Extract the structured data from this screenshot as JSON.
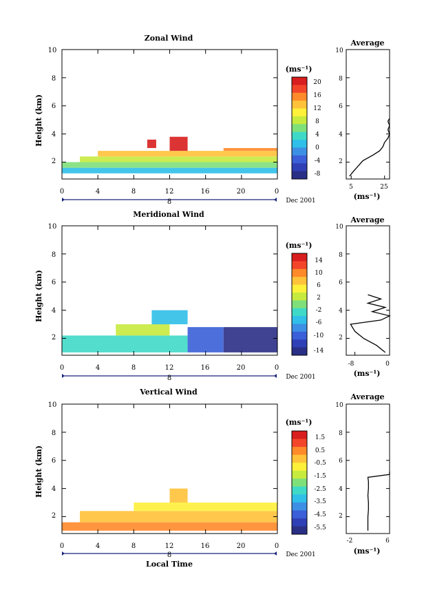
{
  "colors": {
    "background": "#ffffff",
    "axis": "#000000",
    "date_bar": "#1a237e",
    "colormap": [
      "#2a2f86",
      "#2f3fb5",
      "#3a5fd8",
      "#3c8fe4",
      "#2fbfe8",
      "#3fd9c8",
      "#7fe07a",
      "#c7ea3e",
      "#fff03a",
      "#ffc23a",
      "#ff8a2a",
      "#f2452a",
      "#d81e1e"
    ]
  },
  "panels": [
    {
      "id": "zonal",
      "title": "Zonal Wind",
      "ylabel": "Height (km)",
      "xticks": [
        "0",
        "4",
        "8",
        "12",
        "16",
        "20",
        "0"
      ],
      "y_ticks": [
        "2",
        "4",
        "6",
        "8",
        "10"
      ],
      "date_label": "Dec 2001",
      "date_marker": "8",
      "colorbar_unit": "(ms⁻¹)",
      "colorbar_ticks": [
        "20",
        "16",
        "12",
        "8",
        "4",
        "0",
        "-4",
        "-8"
      ],
      "avg_title": "Average",
      "avg_xticks": [
        "5",
        "25"
      ],
      "avg_unit": "(ms⁻¹)"
    },
    {
      "id": "meridional",
      "title": "Meridional Wind",
      "ylabel": "Height (km)",
      "xticks": [
        "0",
        "4",
        "8",
        "12",
        "16",
        "20",
        "0"
      ],
      "y_ticks": [
        "2",
        "4",
        "6",
        "8",
        "10"
      ],
      "date_label": "Dec 2001",
      "date_marker": "8",
      "colorbar_unit": "(ms⁻¹)",
      "colorbar_ticks": [
        "14",
        "10",
        "6",
        "2",
        "-2",
        "-6",
        "-10",
        "-14"
      ],
      "avg_title": "Average",
      "avg_xticks": [
        "-8",
        "0"
      ],
      "avg_unit": "(ms⁻¹)"
    },
    {
      "id": "vertical",
      "title": "Vertical Wind",
      "ylabel": "Height (km)",
      "xticks": [
        "0",
        "4",
        "8",
        "12",
        "16",
        "20",
        "0"
      ],
      "y_ticks": [
        "2",
        "4",
        "6",
        "8",
        "10"
      ],
      "date_label": "Dec 2001",
      "date_marker": "8",
      "colorbar_unit": "(ms⁻¹)",
      "colorbar_ticks": [
        "1.5",
        "0.5",
        "-0.5",
        "-1.5",
        "-2.5",
        "-3.5",
        "-4.5",
        "-5.5"
      ],
      "avg_title": "Average",
      "avg_xticks": [
        "-2",
        "6"
      ],
      "avg_unit": "(ms⁻¹)"
    }
  ],
  "xlabel": "Local Time",
  "chart_data": [
    {
      "type": "heatmap",
      "title": "Zonal Wind",
      "xlabel": "",
      "ylabel": "Height (km)",
      "xlim": [
        0,
        24
      ],
      "ylim": [
        0.8,
        10
      ],
      "colorbar": {
        "unit": "(ms⁻¹)",
        "range": [
          -8,
          22
        ],
        "ticks": [
          20,
          16,
          12,
          8,
          4,
          0,
          -4,
          -8
        ]
      },
      "blocks": [
        {
          "x": [
            0,
            24
          ],
          "y": [
            1.2,
            1.6
          ],
          "value": 2
        },
        {
          "x": [
            0,
            24
          ],
          "y": [
            1.6,
            2.0
          ],
          "value": 6
        },
        {
          "x": [
            2,
            24
          ],
          "y": [
            2.0,
            2.4
          ],
          "value": 9
        },
        {
          "x": [
            4,
            24
          ],
          "y": [
            2.4,
            2.8
          ],
          "value": 13
        },
        {
          "x": [
            18,
            24
          ],
          "y": [
            2.8,
            3.0
          ],
          "value": 17
        },
        {
          "x": [
            12,
            14
          ],
          "y": [
            2.8,
            3.8
          ],
          "value": 21
        },
        {
          "x": [
            9.5,
            10.5
          ],
          "y": [
            3.0,
            3.6
          ],
          "value": 20
        }
      ],
      "average_profile": {
        "xlim": [
          2,
          28
        ],
        "xticks": [
          5,
          25
        ],
        "height": [
          1.0,
          1.3,
          1.7,
          2.1,
          2.5,
          2.8,
          3.1,
          3.4,
          3.7,
          4.0,
          4.3,
          4.6,
          4.9,
          5.1
        ],
        "value": [
          4,
          6,
          9,
          12,
          18,
          22,
          24,
          25,
          27,
          28,
          27,
          28,
          27,
          28
        ]
      }
    },
    {
      "type": "heatmap",
      "title": "Meridional Wind",
      "xlabel": "",
      "ylabel": "Height (km)",
      "xlim": [
        0,
        24
      ],
      "ylim": [
        0.8,
        10
      ],
      "colorbar": {
        "unit": "(ms⁻¹)",
        "range": [
          -16,
          16
        ],
        "ticks": [
          14,
          10,
          6,
          2,
          -2,
          -6,
          -10,
          -14
        ]
      },
      "blocks": [
        {
          "x": [
            0,
            14
          ],
          "y": [
            1.0,
            2.2
          ],
          "value": -2
        },
        {
          "x": [
            6,
            12
          ],
          "y": [
            2.2,
            3.0
          ],
          "value": 2
        },
        {
          "x": [
            14,
            18
          ],
          "y": [
            1.0,
            2.8
          ],
          "value": -10
        },
        {
          "x": [
            18,
            24
          ],
          "y": [
            1.0,
            2.8
          ],
          "value": -14
        },
        {
          "x": [
            10,
            14
          ],
          "y": [
            3.0,
            4.0
          ],
          "value": -4
        }
      ],
      "average_profile": {
        "xlim": [
          -10,
          0
        ],
        "xticks": [
          -8,
          0
        ],
        "height": [
          1.0,
          1.5,
          2.0,
          2.5,
          3.0,
          3.3,
          3.6,
          3.9,
          4.2,
          4.5,
          4.8,
          5.1
        ],
        "value": [
          -1,
          -3,
          -6,
          -8,
          -9,
          -2,
          0,
          -4,
          -1,
          -5,
          -2,
          -5
        ]
      }
    },
    {
      "type": "heatmap",
      "title": "Vertical Wind",
      "xlabel": "Local Time",
      "ylabel": "Height (km)",
      "xlim": [
        0,
        24
      ],
      "ylim": [
        0.8,
        10
      ],
      "colorbar": {
        "unit": "(ms⁻¹)",
        "range": [
          -6,
          2
        ],
        "ticks": [
          1.5,
          0.5,
          -0.5,
          -1.5,
          -2.5,
          -3.5,
          -4.5,
          -5.5
        ]
      },
      "blocks": [
        {
          "x": [
            0,
            24
          ],
          "y": [
            1.0,
            1.6
          ],
          "value": 0.2
        },
        {
          "x": [
            2,
            24
          ],
          "y": [
            1.6,
            2.4
          ],
          "value": -0.2
        },
        {
          "x": [
            8,
            24
          ],
          "y": [
            2.4,
            3.0
          ],
          "value": -0.5
        },
        {
          "x": [
            12,
            14
          ],
          "y": [
            3.0,
            4.0
          ],
          "value": -0.4
        }
      ],
      "average_profile": {
        "xlim": [
          -2,
          6
        ],
        "xticks": [
          -2,
          6
        ],
        "height": [
          1.0,
          1.5,
          2.0,
          2.5,
          3.0,
          3.5,
          4.0,
          4.5,
          4.8,
          5.0,
          5.2
        ],
        "value": [
          2,
          2,
          2,
          2.1,
          2.1,
          2.0,
          2.1,
          2.1,
          2.0,
          6,
          6
        ]
      }
    }
  ]
}
